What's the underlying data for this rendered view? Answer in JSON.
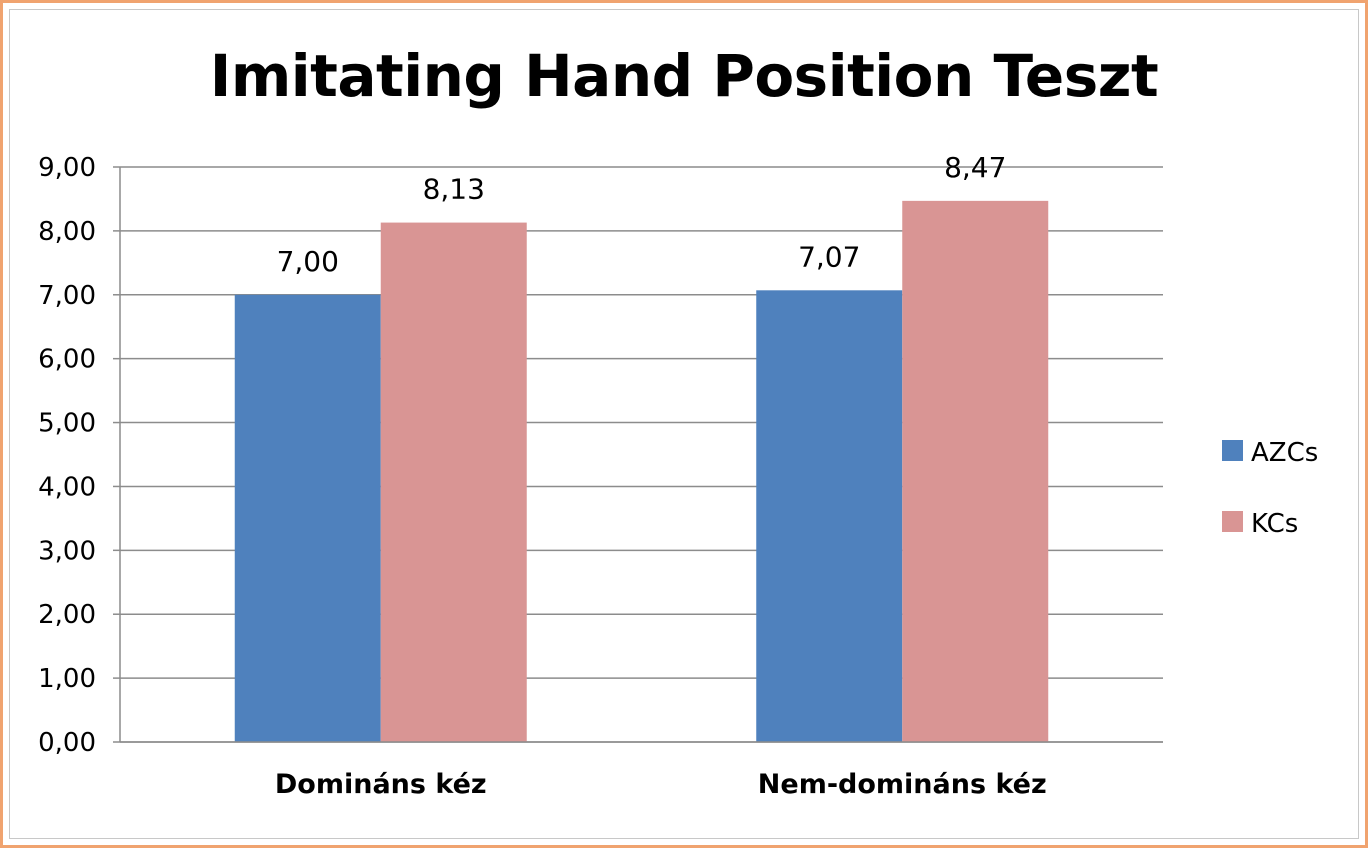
{
  "chart_data": {
    "type": "bar",
    "title": "Imitating Hand Position Teszt",
    "xlabel": "",
    "ylabel": "",
    "categories": [
      "Domináns kéz",
      "Nem-domináns kéz"
    ],
    "series": [
      {
        "name": "AZCs",
        "values": [
          7.0,
          7.07
        ],
        "labels": [
          "7,00",
          "7,07"
        ],
        "color": "#4f81bd"
      },
      {
        "name": "KCs",
        "values": [
          8.13,
          8.47
        ],
        "labels": [
          "8,13",
          "8,47"
        ],
        "color": "#d99594"
      }
    ],
    "ylim": [
      0,
      9
    ],
    "yticks": [
      0,
      1,
      2,
      3,
      4,
      5,
      6,
      7,
      8,
      9
    ],
    "ytick_labels": [
      "0,00",
      "1,00",
      "2,00",
      "3,00",
      "4,00",
      "5,00",
      "6,00",
      "7,00",
      "8,00",
      "9,00"
    ],
    "grid": true,
    "legend_position": "right",
    "border_color": "#f0a36f"
  }
}
